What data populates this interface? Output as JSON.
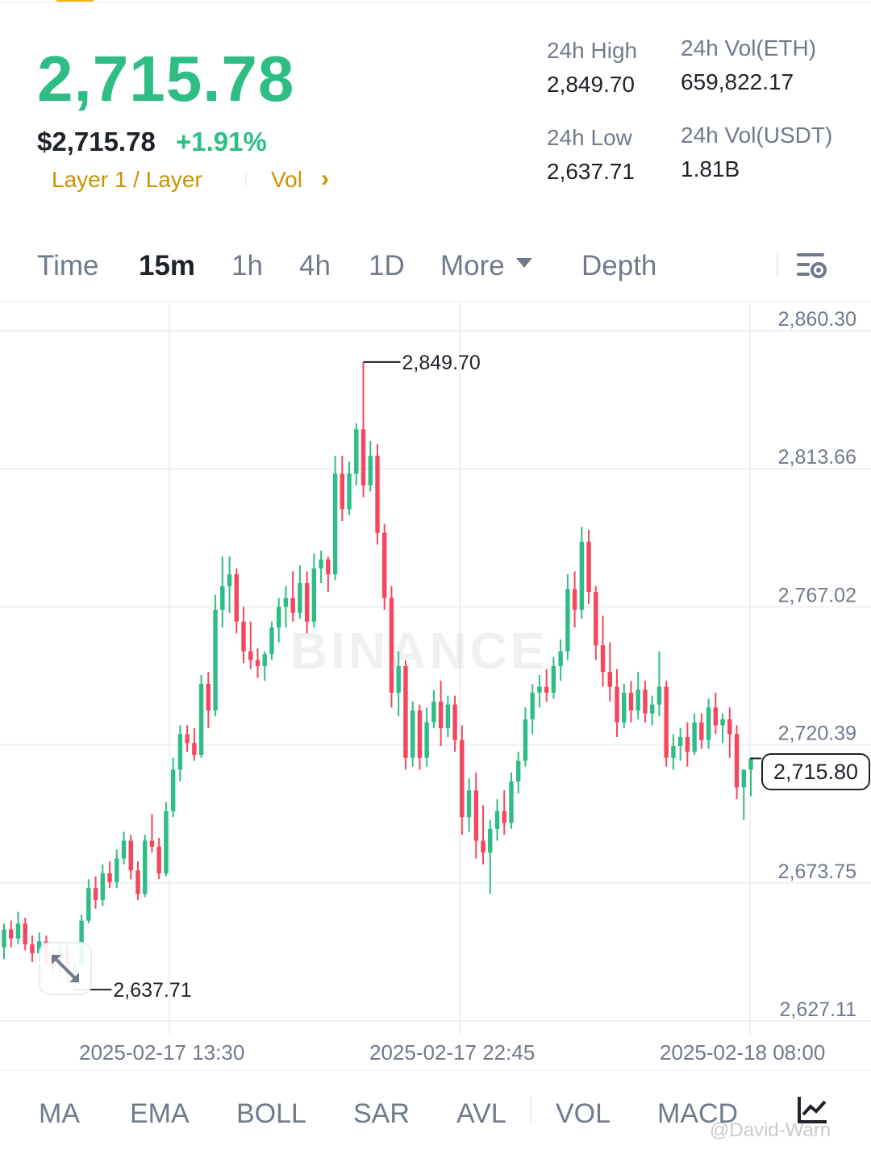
{
  "header": {
    "price_main": "2,715.78",
    "price_usd": "$2,715.78",
    "price_change": "+1.91%",
    "tag_layer": "Layer 1 / Layer",
    "tag_vol": "Vol",
    "tag_vol_chevron": "›"
  },
  "stats": {
    "high_label": "24h High",
    "high_value": "2,849.70",
    "low_label": "24h Low",
    "low_value": "2,637.71",
    "vol_eth_label": "24h Vol(ETH)",
    "vol_eth_value": "659,822.17",
    "vol_usdt_label": "24h Vol(USDT)",
    "vol_usdt_value": "1.81B"
  },
  "tabs": {
    "time": "Time",
    "m15": "15m",
    "h1": "1h",
    "h4": "4h",
    "d1": "1D",
    "more": "More",
    "depth": "Depth"
  },
  "chart": {
    "watermark": "BINANCE",
    "y_ticks": [
      "2,860.30",
      "2,813.66",
      "2,767.02",
      "2,720.39",
      "2,673.75",
      "2,627.11"
    ],
    "high_label": "2,849.70",
    "low_label": "2,637.71",
    "current_price": "2,715.80",
    "time_labels": [
      "2025-02-17 13:30",
      "2025-02-17 22:45",
      "2025-02-18 08:00"
    ]
  },
  "chart_data": {
    "type": "candlestick",
    "y_range": [
      2627.11,
      2860.3
    ],
    "y_ticks": [
      2860.3,
      2813.66,
      2767.02,
      2720.39,
      2673.75,
      2627.11
    ],
    "x_labels": [
      "2025-02-17 13:30",
      "2025-02-17 22:45",
      "2025-02-18 08:00"
    ],
    "high": 2849.7,
    "low": 2637.71,
    "last": 2715.8,
    "colors": {
      "up": "#2ebd85",
      "down": "#f6465d"
    },
    "candles": [
      [
        2652,
        2660,
        2648,
        2658
      ],
      [
        2658,
        2661,
        2652,
        2655
      ],
      [
        2655,
        2664,
        2653,
        2660
      ],
      [
        2660,
        2662,
        2651,
        2653
      ],
      [
        2653,
        2656,
        2647,
        2650
      ],
      [
        2650,
        2657,
        2649,
        2654
      ],
      [
        2654,
        2656,
        2646,
        2649
      ],
      [
        2649,
        2652,
        2643,
        2645
      ],
      [
        2645,
        2653,
        2642,
        2651
      ],
      [
        2651,
        2653,
        2640,
        2643
      ],
      [
        2643,
        2645,
        2637.71,
        2646
      ],
      [
        2646,
        2663,
        2645,
        2661
      ],
      [
        2661,
        2675,
        2660,
        2672
      ],
      [
        2672,
        2676,
        2665,
        2668
      ],
      [
        2668,
        2680,
        2666,
        2677
      ],
      [
        2677,
        2681,
        2672,
        2674
      ],
      [
        2674,
        2685,
        2672,
        2682
      ],
      [
        2682,
        2691,
        2680,
        2688
      ],
      [
        2688,
        2690,
        2675,
        2678
      ],
      [
        2678,
        2681,
        2668,
        2670
      ],
      [
        2670,
        2690,
        2669,
        2688
      ],
      [
        2688,
        2697,
        2684,
        2686
      ],
      [
        2686,
        2689,
        2675,
        2677
      ],
      [
        2677,
        2701,
        2676,
        2698
      ],
      [
        2698,
        2716,
        2696,
        2712
      ],
      [
        2712,
        2727,
        2708,
        2724
      ],
      [
        2724,
        2727,
        2718,
        2721
      ],
      [
        2721,
        2726,
        2715,
        2717
      ],
      [
        2717,
        2744,
        2716,
        2741
      ],
      [
        2741,
        2745,
        2726,
        2732
      ],
      [
        2732,
        2771,
        2730,
        2766
      ],
      [
        2766,
        2784,
        2760,
        2774
      ],
      [
        2774,
        2784,
        2765,
        2778
      ],
      [
        2778,
        2780,
        2758,
        2762
      ],
      [
        2762,
        2767,
        2748,
        2752
      ],
      [
        2752,
        2762,
        2746,
        2749
      ],
      [
        2749,
        2753,
        2743,
        2747
      ],
      [
        2747,
        2752,
        2742,
        2751
      ],
      [
        2751,
        2762,
        2749,
        2760
      ],
      [
        2760,
        2770,
        2755,
        2767
      ],
      [
        2767,
        2774,
        2760,
        2770
      ],
      [
        2770,
        2779,
        2762,
        2765
      ],
      [
        2765,
        2781,
        2763,
        2775
      ],
      [
        2775,
        2779,
        2758,
        2762
      ],
      [
        2762,
        2785,
        2760,
        2780
      ],
      [
        2780,
        2786,
        2775,
        2783
      ],
      [
        2783,
        2784,
        2772,
        2778
      ],
      [
        2778,
        2818,
        2776,
        2812
      ],
      [
        2812,
        2818,
        2796,
        2800
      ],
      [
        2800,
        2816,
        2798,
        2812
      ],
      [
        2812,
        2829,
        2808,
        2827
      ],
      [
        2827,
        2849.7,
        2804,
        2808
      ],
      [
        2808,
        2823,
        2806,
        2818
      ],
      [
        2818,
        2822,
        2788,
        2792
      ],
      [
        2792,
        2795,
        2766,
        2770
      ],
      [
        2770,
        2774,
        2733,
        2738
      ],
      [
        2738,
        2752,
        2730,
        2747
      ],
      [
        2747,
        2749,
        2712,
        2716
      ],
      [
        2716,
        2735,
        2713,
        2732
      ],
      [
        2732,
        2734,
        2712,
        2716
      ],
      [
        2716,
        2733,
        2713,
        2728
      ],
      [
        2728,
        2739,
        2726,
        2735
      ],
      [
        2735,
        2742,
        2720,
        2726
      ],
      [
        2726,
        2737,
        2723,
        2734
      ],
      [
        2734,
        2737,
        2718,
        2722
      ],
      [
        2722,
        2727,
        2690,
        2696
      ],
      [
        2696,
        2709,
        2691,
        2705
      ],
      [
        2705,
        2711,
        2682,
        2688
      ],
      [
        2688,
        2700,
        2680,
        2684
      ],
      [
        2684,
        2695,
        2670,
        2692
      ],
      [
        2692,
        2702,
        2688,
        2698
      ],
      [
        2698,
        2705,
        2690,
        2694
      ],
      [
        2694,
        2711,
        2692,
        2708
      ],
      [
        2708,
        2718,
        2704,
        2715
      ],
      [
        2715,
        2733,
        2713,
        2729
      ],
      [
        2729,
        2741,
        2724,
        2738
      ],
      [
        2738,
        2744,
        2733,
        2740
      ],
      [
        2740,
        2746,
        2735,
        2738
      ],
      [
        2738,
        2750,
        2736,
        2747
      ],
      [
        2747,
        2756,
        2742,
        2752
      ],
      [
        2752,
        2778,
        2749,
        2773
      ],
      [
        2773,
        2779,
        2760,
        2766
      ],
      [
        2766,
        2794,
        2763,
        2789
      ],
      [
        2789,
        2793,
        2768,
        2772
      ],
      [
        2772,
        2774,
        2749,
        2754
      ],
      [
        2754,
        2764,
        2740,
        2745
      ],
      [
        2745,
        2755,
        2735,
        2740
      ],
      [
        2740,
        2746,
        2723,
        2728
      ],
      [
        2728,
        2741,
        2726,
        2738
      ],
      [
        2738,
        2742,
        2728,
        2732
      ],
      [
        2732,
        2745,
        2729,
        2739
      ],
      [
        2739,
        2742,
        2728,
        2731
      ],
      [
        2731,
        2737,
        2727,
        2734
      ],
      [
        2734,
        2752,
        2730,
        2740
      ],
      [
        2740,
        2742,
        2713,
        2716
      ],
      [
        2716,
        2724,
        2712,
        2720
      ],
      [
        2720,
        2726,
        2715,
        2723
      ],
      [
        2723,
        2728,
        2713,
        2718
      ],
      [
        2718,
        2731,
        2717,
        2728
      ],
      [
        2728,
        2731,
        2719,
        2722
      ],
      [
        2722,
        2736,
        2719,
        2733
      ],
      [
        2733,
        2738,
        2724,
        2727
      ],
      [
        2727,
        2731,
        2721,
        2729
      ],
      [
        2729,
        2733,
        2716,
        2724
      ],
      [
        2724,
        2727,
        2702,
        2706
      ],
      [
        2706,
        2712,
        2695,
        2712
      ],
      [
        2712,
        2714,
        2703,
        2715.8
      ]
    ]
  },
  "indicators": {
    "ma": "MA",
    "ema": "EMA",
    "boll": "BOLL",
    "sar": "SAR",
    "avl": "AVL",
    "vol": "VOL",
    "macd": "MACD"
  },
  "credit": "@David-Warn"
}
